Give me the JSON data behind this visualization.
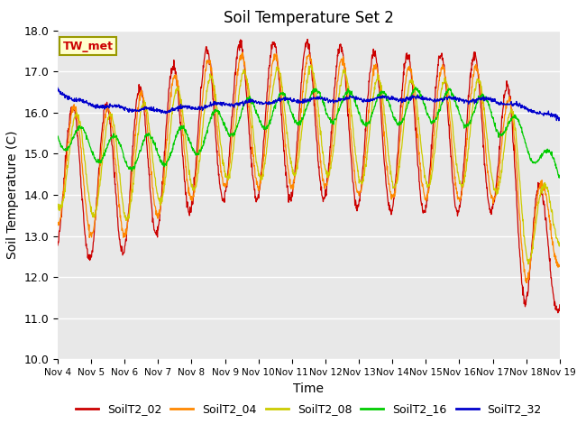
{
  "title": "Soil Temperature Set 2",
  "xlabel": "Time",
  "ylabel": "Soil Temperature (C)",
  "ylim": [
    10.0,
    18.0
  ],
  "yticks": [
    10.0,
    11.0,
    12.0,
    13.0,
    14.0,
    15.0,
    16.0,
    17.0,
    18.0
  ],
  "xtick_labels": [
    "Nov 4",
    "Nov 5",
    "Nov 6",
    "Nov 7",
    "Nov 8",
    "Nov 9",
    "Nov 10",
    "Nov 11",
    "Nov 12",
    "Nov 13",
    "Nov 14",
    "Nov 15",
    "Nov 16",
    "Nov 17",
    "Nov 18",
    "Nov 19"
  ],
  "annotation": "TW_met",
  "annotation_color": "#cc0000",
  "annotation_bg": "#ffffcc",
  "annotation_edge": "#999900",
  "plot_bg": "#e8e8e8",
  "fig_bg": "#ffffff",
  "grid_color": "#ffffff",
  "colors": {
    "T02": "#cc0000",
    "T04": "#ff8800",
    "T08": "#cccc00",
    "T16": "#00cc00",
    "T32": "#0000cc"
  },
  "legend_labels": [
    "SoilT2_02",
    "SoilT2_04",
    "SoilT2_08",
    "SoilT2_16",
    "SoilT2_32"
  ]
}
